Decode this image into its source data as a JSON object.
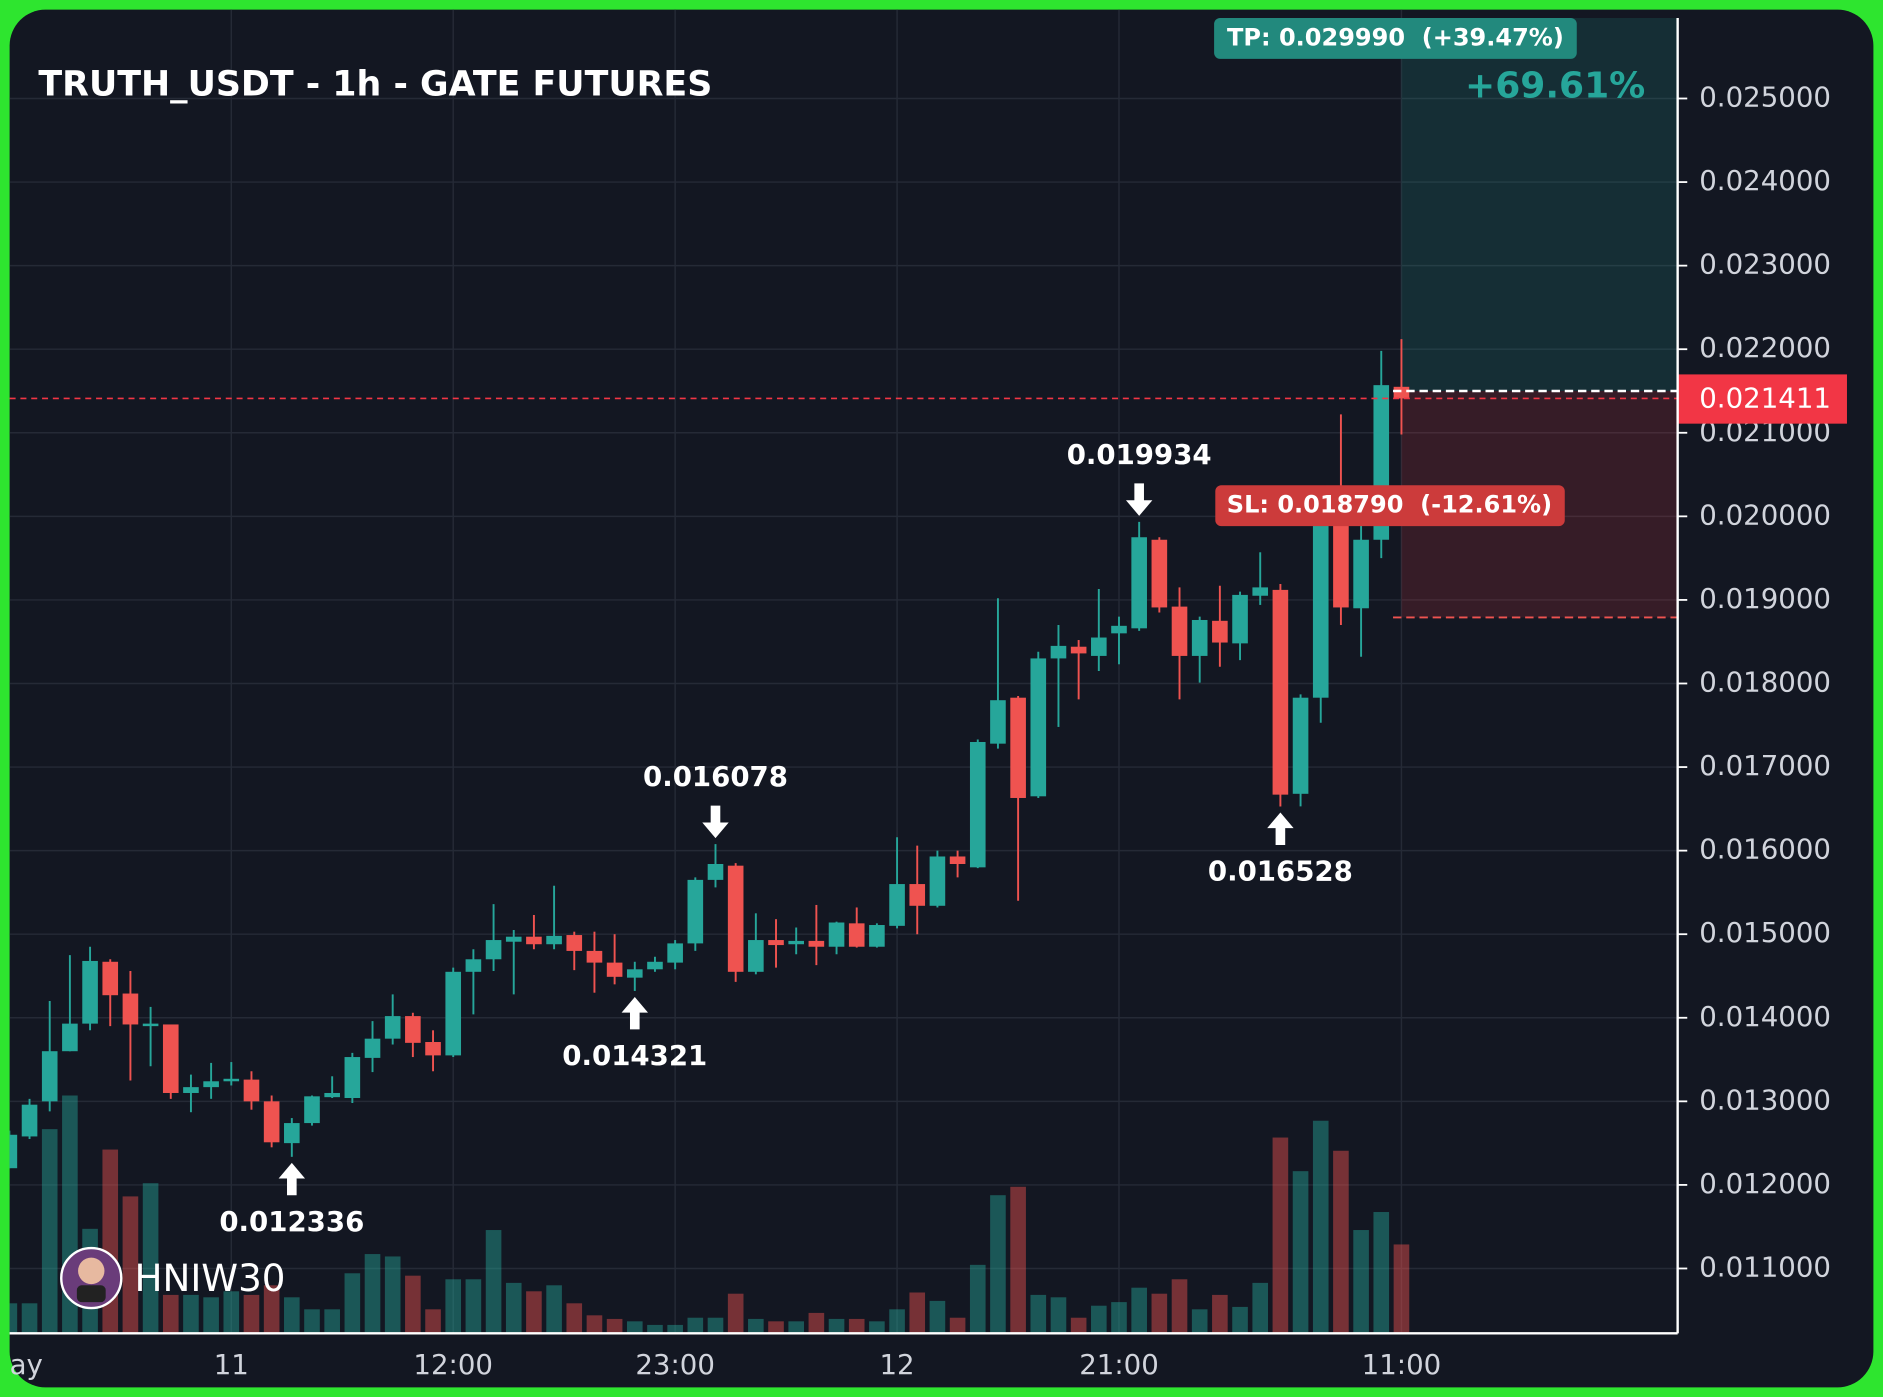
{
  "chart_data": {
    "type": "candlestick",
    "title": "TRUTH_USDT - 1h - GATE FUTURES",
    "watermark": "HNIW30",
    "up_color": "#26a69a",
    "down_color": "#ef5350",
    "grid": true,
    "categories": [
      "ay",
      null,
      null,
      null,
      null,
      null,
      null,
      null,
      null,
      null,
      null,
      "11",
      null,
      null,
      null,
      null,
      null,
      null,
      null,
      null,
      null,
      null,
      "12:00",
      null,
      null,
      null,
      null,
      null,
      null,
      null,
      null,
      null,
      null,
      "23:00",
      null,
      null,
      null,
      null,
      null,
      null,
      null,
      null,
      null,
      null,
      "12",
      null,
      null,
      null,
      null,
      null,
      null,
      null,
      null,
      null,
      null,
      "21:00",
      null,
      null,
      null,
      null,
      null,
      null,
      null,
      null,
      null,
      null,
      null,
      null,
      null,
      "11:00"
    ],
    "open": [
      0.0122,
      0.01258,
      0.013,
      0.0136,
      0.01393,
      0.01467,
      0.01429,
      0.0139,
      0.01392,
      0.0131,
      0.01317,
      0.01324,
      0.01326,
      0.013,
      0.0125,
      0.01274,
      0.01305,
      0.01304,
      0.01352,
      0.01375,
      0.01402,
      0.01371,
      0.01355,
      0.01455,
      0.0147,
      0.01491,
      0.01497,
      0.01488,
      0.01499,
      0.0148,
      0.01466,
      0.01448,
      0.01458,
      0.01466,
      0.01489,
      0.01565,
      0.01582,
      0.01455,
      0.01493,
      0.01488,
      0.01492,
      0.01485,
      0.01513,
      0.01485,
      0.0151,
      0.0156,
      0.01534,
      0.01593,
      0.0158,
      0.01728,
      0.01783,
      0.01665,
      0.0183,
      0.01844,
      0.01833,
      0.0186,
      0.01866,
      0.01972,
      0.01892,
      0.01833,
      0.01875,
      0.01848,
      0.01905,
      0.01912,
      0.01668,
      0.01783,
      0.02,
      0.0189,
      0.01972,
      0.02155
    ],
    "high": [
      0.01265,
      0.01303,
      0.0142,
      0.01475,
      0.01485,
      0.0147,
      0.01456,
      0.01413,
      0.01392,
      0.01332,
      0.01346,
      0.01347,
      0.01336,
      0.01307,
      0.0128,
      0.01307,
      0.0133,
      0.01358,
      0.01396,
      0.01428,
      0.01406,
      0.01385,
      0.0146,
      0.01482,
      0.01536,
      0.01505,
      0.01523,
      0.01558,
      0.01503,
      0.01503,
      0.015,
      0.01467,
      0.01473,
      0.01493,
      0.01568,
      0.016078,
      0.01585,
      0.01525,
      0.01518,
      0.01508,
      0.01535,
      0.01515,
      0.01532,
      0.01513,
      0.01616,
      0.01606,
      0.016,
      0.016,
      0.01733,
      0.01902,
      0.01785,
      0.01838,
      0.0187,
      0.01852,
      0.01913,
      0.0188,
      0.019934,
      0.01975,
      0.01915,
      0.0188,
      0.01917,
      0.0191,
      0.01957,
      0.01919,
      0.01787,
      0.02017,
      0.02122,
      0.02014,
      0.02198,
      0.02212
    ],
    "low": [
      0.0122,
      0.01255,
      0.01288,
      0.0136,
      0.01385,
      0.0139,
      0.01325,
      0.01342,
      0.01303,
      0.01287,
      0.01303,
      0.01319,
      0.0129,
      0.01245,
      0.012336,
      0.01271,
      0.01304,
      0.01298,
      0.01335,
      0.01368,
      0.01353,
      0.01336,
      0.01353,
      0.01404,
      0.01456,
      0.01428,
      0.01482,
      0.01482,
      0.01457,
      0.0143,
      0.0144,
      0.014321,
      0.01455,
      0.01458,
      0.0148,
      0.01556,
      0.01443,
      0.01452,
      0.0146,
      0.01476,
      0.01463,
      0.01476,
      0.01484,
      0.01484,
      0.01507,
      0.015,
      0.01532,
      0.01568,
      0.01579,
      0.01722,
      0.0154,
      0.01663,
      0.01748,
      0.01781,
      0.01815,
      0.01823,
      0.01863,
      0.01885,
      0.01781,
      0.01801,
      0.0182,
      0.01828,
      0.01894,
      0.016528,
      0.01653,
      0.01753,
      0.0187,
      0.01832,
      0.0195,
      0.02098
    ],
    "close": [
      0.0126,
      0.01296,
      0.0136,
      0.01393,
      0.01468,
      0.01427,
      0.01392,
      0.01393,
      0.0131,
      0.01317,
      0.01324,
      0.01327,
      0.013,
      0.01251,
      0.01274,
      0.01306,
      0.0131,
      0.01353,
      0.01375,
      0.01402,
      0.0137,
      0.01355,
      0.01455,
      0.0147,
      0.01493,
      0.01497,
      0.01488,
      0.01498,
      0.0148,
      0.01466,
      0.01449,
      0.01458,
      0.01467,
      0.01489,
      0.01565,
      0.01584,
      0.01455,
      0.01493,
      0.01487,
      0.01492,
      0.01485,
      0.01514,
      0.01485,
      0.01511,
      0.0156,
      0.01534,
      0.01593,
      0.01584,
      0.0173,
      0.0178,
      0.01663,
      0.0183,
      0.01845,
      0.01836,
      0.01855,
      0.01869,
      0.01975,
      0.01891,
      0.01833,
      0.01876,
      0.01849,
      0.01906,
      0.01915,
      0.01667,
      0.01783,
      0.02007,
      0.01891,
      0.01972,
      0.02157,
      0.021411
    ],
    "volume": [
      25,
      25,
      170,
      198,
      87,
      153,
      114,
      125,
      32,
      32,
      30,
      35,
      32,
      40,
      30,
      20,
      20,
      50,
      66,
      64,
      48,
      20,
      45,
      45,
      86,
      42,
      35,
      40,
      25,
      15,
      12,
      10,
      7,
      7,
      13,
      13,
      33,
      12,
      10,
      10,
      17,
      12,
      12,
      10,
      20,
      34,
      27,
      13,
      57,
      115,
      122,
      32,
      30,
      13,
      23,
      26,
      38,
      33,
      45,
      20,
      32,
      22,
      42,
      163,
      135,
      177,
      152,
      86,
      101,
      74
    ],
    "ylim": [
      0.010224,
      0.025963
    ],
    "yticks": [
      {
        "value": 0.011,
        "label": "0.011000"
      },
      {
        "value": 0.012,
        "label": "0.012000"
      },
      {
        "value": 0.013,
        "label": "0.013000"
      },
      {
        "value": 0.014,
        "label": "0.014000"
      },
      {
        "value": 0.015,
        "label": "0.015000"
      },
      {
        "value": 0.016,
        "label": "0.016000"
      },
      {
        "value": 0.017,
        "label": "0.017000"
      },
      {
        "value": 0.018,
        "label": "0.018000"
      },
      {
        "value": 0.019,
        "label": "0.019000"
      },
      {
        "value": 0.02,
        "label": "0.020000"
      },
      {
        "value": 0.021,
        "label": "0.021000"
      },
      {
        "value": 0.022,
        "label": "0.022000"
      },
      {
        "value": 0.023,
        "label": "0.023000"
      },
      {
        "value": 0.024,
        "label": "0.024000"
      },
      {
        "value": 0.025,
        "label": "0.025000"
      }
    ],
    "entry": 0.0215,
    "take_profit": {
      "value": 0.02999,
      "label": "TP: 0.029990  (+39.47%)"
    },
    "stop_loss": {
      "value": 0.01879,
      "label": "SL: 0.018790  (-12.61%)"
    },
    "change_label": "+69.61%"
  }
}
